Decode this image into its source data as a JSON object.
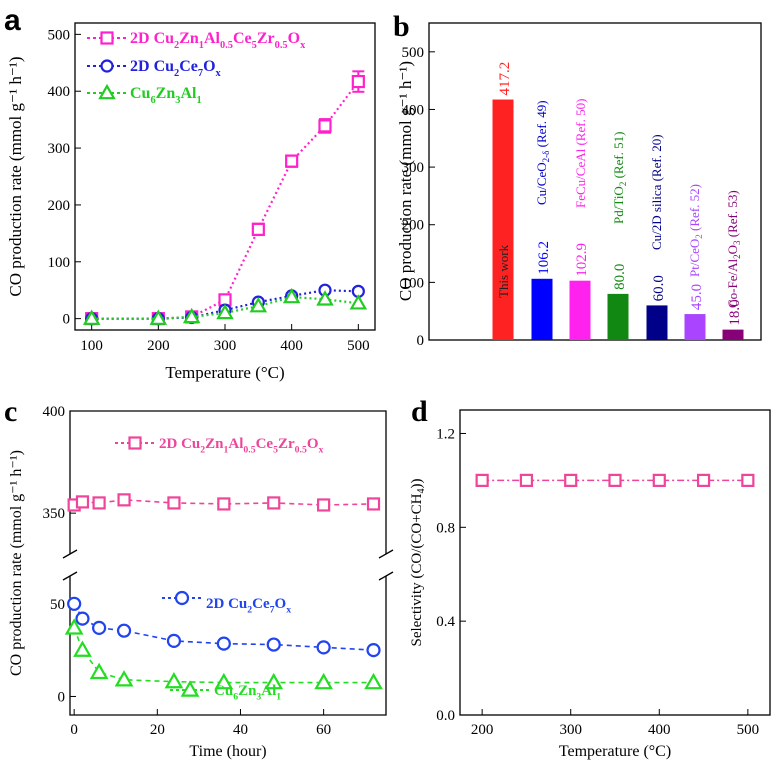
{
  "chart_data": [
    {
      "panel": "a",
      "type": "line",
      "xlabel": "Temperature (°C)",
      "ylabel": "CO production rate (mmol g⁻¹ h⁻¹)",
      "xlim": [
        75,
        525
      ],
      "ylim": [
        -20,
        520
      ],
      "xticks": [
        100,
        200,
        300,
        400,
        500
      ],
      "yticks": [
        0,
        100,
        200,
        300,
        400,
        500
      ],
      "x": [
        100,
        200,
        250,
        300,
        350,
        400,
        450,
        500
      ],
      "series": [
        {
          "name": "2D Cu2Zn1Al0.5Ce5Zr0.5Ox",
          "color": "#ff22cc",
          "marker": "square",
          "values": [
            0,
            0,
            3,
            33,
            157,
            277,
            339,
            417
          ],
          "errors": [
            3,
            3,
            4,
            7,
            10,
            10,
            12,
            18
          ]
        },
        {
          "name": "2D Cu2Ce7Ox",
          "color": "#2222dd",
          "marker": "circle",
          "values": [
            0,
            0,
            2,
            15,
            29,
            40,
            50,
            48
          ],
          "errors": [
            0,
            0,
            0,
            0,
            0,
            0,
            0,
            0
          ]
        },
        {
          "name": "Cu6Zn3Al1",
          "color": "#22cc22",
          "marker": "triangle",
          "values": [
            0,
            0,
            3,
            10,
            22,
            38,
            34,
            27
          ],
          "errors": [
            0,
            0,
            0,
            0,
            0,
            0,
            0,
            0
          ]
        }
      ]
    },
    {
      "panel": "b",
      "type": "bar",
      "ylabel": "CO production rate (mmol g⁻¹ h⁻¹)",
      "ylim": [
        0,
        550
      ],
      "yticks": [
        0,
        100,
        200,
        300,
        400,
        500
      ],
      "categories": [
        "This work",
        "Cu/CeO2-δ (Ref. 49)",
        "FeCu/CeAl (Ref. 50)",
        "Pd/TiO2 (Ref. 51)",
        "Cu/2D silica (Ref. 20)",
        "Pt/CeO2 (Ref. 52)",
        "Co-Fe/Al2O3 (Ref. 53)"
      ],
      "values": [
        417.2,
        106.2,
        102.9,
        80.0,
        60.0,
        45.0,
        18.0
      ],
      "value_labels": [
        "417.2",
        "106.2",
        "102.9",
        "80.0",
        "60.0",
        "45.0",
        "18.0"
      ],
      "colors": [
        "#ff2222",
        "#0000ff",
        "#ff22ee",
        "#118811",
        "#000088",
        "#aa44ff",
        "#880077"
      ],
      "label_colors": [
        "#222222",
        "#0000cc",
        "#ff22ee",
        "#118811",
        "#000088",
        "#aa44ff",
        "#880077"
      ]
    },
    {
      "panel": "c",
      "type": "line",
      "xlabel": "Time (hour)",
      "ylabel": "CO production rate (mmol g⁻¹ h⁻¹)",
      "xlim": [
        -1,
        75
      ],
      "broken_axis": {
        "upper_range": [
          330,
          400
        ],
        "lower_range": [
          -10,
          65
        ]
      },
      "xticks": [
        0,
        20,
        40,
        60
      ],
      "yticks_upper": [
        350,
        400
      ],
      "yticks_lower": [
        0,
        50
      ],
      "series": [
        {
          "name": "2D Cu2Zn1Al0.5Ce5Zr0.5Ox",
          "color": "#ee4499",
          "marker": "square",
          "x": [
            0,
            2,
            6,
            12,
            24,
            36,
            48,
            60,
            72
          ],
          "values": [
            354,
            355.5,
            355,
            356.5,
            355,
            354.5,
            355,
            354,
            354.5
          ]
        },
        {
          "name": "2D Cu2Ce7Ox",
          "color": "#2244ee",
          "marker": "circle",
          "x": [
            0,
            2,
            6,
            12,
            24,
            36,
            48,
            60,
            72
          ],
          "values": [
            50,
            42,
            37,
            35.5,
            30,
            28.5,
            28,
            26.5,
            25
          ]
        },
        {
          "name": "Cu6Zn3Al1",
          "color": "#22dd22",
          "marker": "triangle",
          "x": [
            0,
            2,
            6,
            12,
            24,
            36,
            48,
            60,
            72
          ],
          "values": [
            37,
            25,
            13,
            9,
            8,
            7.5,
            7.5,
            7.5,
            7.5
          ]
        }
      ]
    },
    {
      "panel": "d",
      "type": "line",
      "xlabel": "Temperature (°C)",
      "ylabel": "Selectivity (CO/(CO+CH4))",
      "xlim": [
        175,
        525
      ],
      "ylim": [
        0,
        1.3
      ],
      "xticks": [
        200,
        300,
        400,
        500
      ],
      "yticks": [
        0.0,
        0.4,
        0.8,
        1.2
      ],
      "series": [
        {
          "name": "selectivity",
          "color": "#ee4499",
          "marker": "square",
          "x": [
            200,
            250,
            300,
            350,
            400,
            450,
            500
          ],
          "values": [
            1,
            1,
            1,
            1,
            1,
            1,
            1
          ]
        }
      ]
    }
  ],
  "panels": {
    "a": {
      "letter": "a",
      "xlabel": "Temperature (°C)",
      "ylabel": "CO production rate (mmol g⁻¹ h⁻¹)",
      "legend": [
        {
          "prefix": "2D ",
          "parts": [
            "Cu",
            "2",
            "Zn",
            "1",
            "Al",
            "0.5",
            "Ce",
            "5",
            "Zr",
            "0.5",
            "O",
            "x"
          ]
        },
        {
          "prefix": "2D ",
          "parts": [
            "Cu",
            "2",
            "Ce",
            "7",
            "O",
            "x"
          ]
        },
        {
          "prefix": "",
          "parts": [
            "Cu",
            "6",
            "Zn",
            "3",
            "Al",
            "1"
          ]
        }
      ]
    },
    "b": {
      "letter": "b",
      "ylabel": "CO production rate (mmol g⁻¹ h⁻¹)"
    },
    "c": {
      "letter": "c",
      "xlabel": "Time (hour)",
      "ylabel": "CO production rate (mmol g⁻¹ h⁻¹)",
      "legend": [
        {
          "prefix": "2D ",
          "parts": [
            "Cu",
            "2",
            "Zn",
            "1",
            "Al",
            "0.5",
            "Ce",
            "5",
            "Zr",
            "0.5",
            "O",
            "x"
          ]
        },
        {
          "prefix": "2D ",
          "parts": [
            "Cu",
            "2",
            "Ce",
            "7",
            "O",
            "x"
          ]
        },
        {
          "prefix": "",
          "parts": [
            "Cu",
            "6",
            "Zn",
            "3",
            "Al",
            "1"
          ]
        }
      ]
    },
    "d": {
      "letter": "d",
      "xlabel": "Temperature (°C)",
      "ylabel": "Selectivity (CO/(CO+CH4))"
    }
  }
}
